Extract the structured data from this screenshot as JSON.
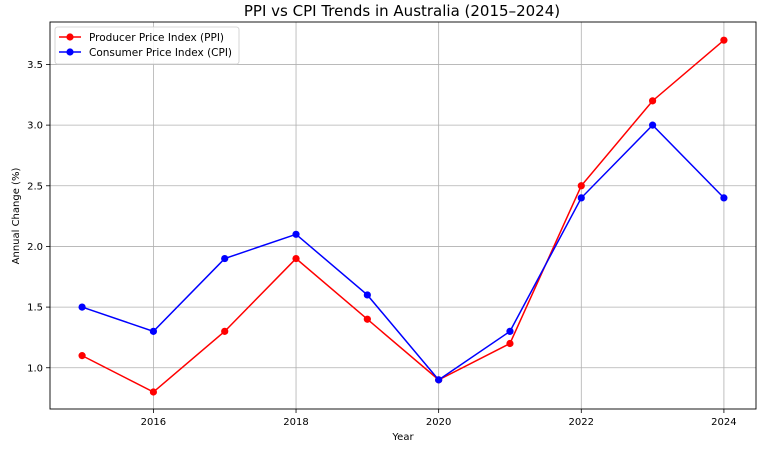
{
  "chart_data": {
    "type": "line",
    "title": "PPI vs CPI Trends in Australia (2015–2024)",
    "xlabel": "Year",
    "ylabel": "Annual Change (%)",
    "x": [
      2015,
      2016,
      2017,
      2018,
      2019,
      2020,
      2021,
      2022,
      2023,
      2024
    ],
    "xticks": [
      2016,
      2018,
      2020,
      2022,
      2024
    ],
    "yticks": [
      1.0,
      1.5,
      2.0,
      2.5,
      3.0,
      3.5
    ],
    "ylim": [
      0.66,
      3.85
    ],
    "xlim": [
      2014.55,
      2024.45
    ],
    "grid": true,
    "legend_position": "upper left",
    "series": [
      {
        "name": "Producer Price Index (PPI)",
        "color": "#ff0000",
        "marker": "circle",
        "values": [
          1.1,
          0.8,
          1.3,
          1.9,
          1.4,
          0.9,
          1.2,
          2.5,
          3.2,
          3.7
        ]
      },
      {
        "name": "Consumer Price Index (CPI)",
        "color": "#0000ff",
        "marker": "circle",
        "values": [
          1.5,
          1.3,
          1.9,
          2.1,
          1.6,
          0.9,
          1.3,
          2.4,
          3.0,
          2.4
        ]
      }
    ]
  }
}
